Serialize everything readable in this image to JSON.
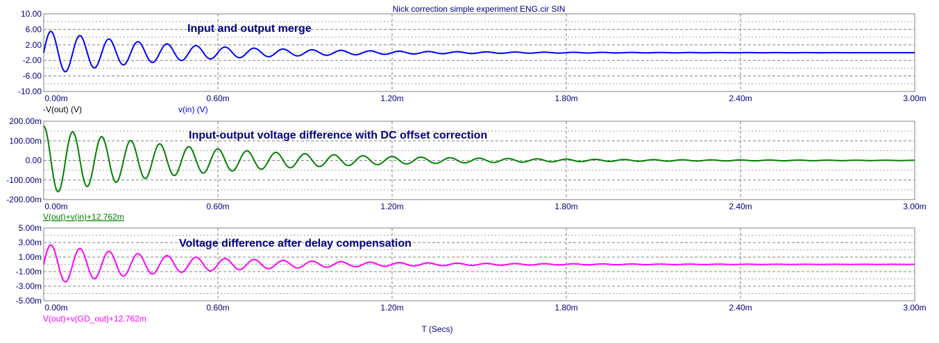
{
  "window_title": "Nick correction simple experiment ENG.cir SIN",
  "xlabel": "T (Secs)",
  "chart_data": [
    {
      "type": "line",
      "annotation": "Input and output merge",
      "ylim": [
        -10,
        10
      ],
      "y_ticks": [
        "10.00",
        "6.00",
        "2.00",
        "-2.00",
        "-6.00",
        "-10.00"
      ],
      "x_ticks": [
        "0.00m",
        "0.60m",
        "1.20m",
        "1.80m",
        "2.40m",
        "3.00m"
      ],
      "xlim_ms": [
        0,
        3
      ],
      "grid": true,
      "legend": [
        {
          "label": "-V(out) (V)",
          "color": "#000000"
        },
        {
          "label": "v(in) (V)",
          "color": "#0000ff"
        }
      ],
      "series": [
        {
          "color": "#0000ff",
          "amplitude": 5.8,
          "period_ms": 0.1,
          "decay_ms": 0.45,
          "start_ms": 0,
          "offset": 0
        }
      ]
    },
    {
      "type": "line",
      "annotation": "Input-output voltage difference with DC offset correction",
      "ylim": [
        -200,
        200
      ],
      "y_ticks": [
        "200.00m",
        "100.00m",
        "0.00",
        "-100.00m",
        "-200.00m"
      ],
      "x_ticks": [
        "0.00m",
        "0.60m",
        "1.20m",
        "1.80m",
        "2.40m",
        "3.00m"
      ],
      "xlim_ms": [
        0,
        3
      ],
      "grid": true,
      "legend": [
        {
          "label": "V(out)+v(in)+12.762m",
          "color": "#008000"
        }
      ],
      "series": [
        {
          "color": "#008000",
          "amplitude": 175,
          "period_ms": 0.1,
          "decay_ms": 0.55,
          "start_ms": 0,
          "offset": 0,
          "phase": "cos"
        }
      ]
    },
    {
      "type": "line",
      "annotation": "Voltage difference after delay compensation",
      "ylim": [
        -5,
        5
      ],
      "y_ticks": [
        "5.00m",
        "3.00m",
        "1.00m",
        "-1.00m",
        "-3.00m",
        "-5.00m"
      ],
      "x_ticks": [
        "0.00m",
        "0.60m",
        "1.20m",
        "1.80m",
        "2.40m",
        "3.00m"
      ],
      "xlim_ms": [
        0,
        3
      ],
      "grid": true,
      "legend": [
        {
          "label": "V(out)+v(GD_out)+12.762m",
          "color": "#ff00ff"
        }
      ],
      "series": [
        {
          "color": "#ff00ff",
          "amplitude": 2.8,
          "period_ms": 0.1,
          "decay_ms": 0.5,
          "start_ms": 0,
          "offset": 0
        }
      ]
    }
  ]
}
